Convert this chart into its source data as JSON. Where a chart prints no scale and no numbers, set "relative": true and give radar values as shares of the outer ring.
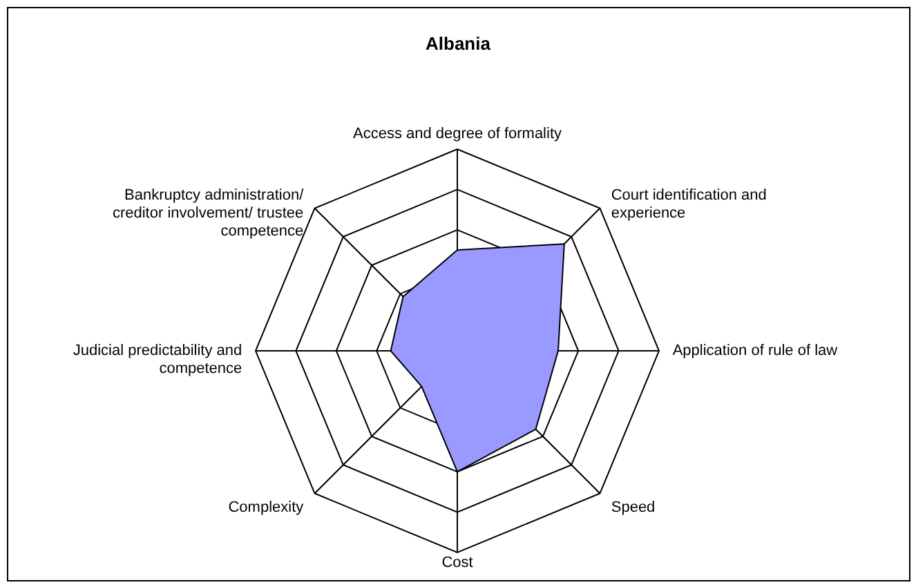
{
  "chart_data": {
    "type": "radar",
    "title": "Albania",
    "relative": true,
    "grid": true,
    "categories": [
      "Access and degree of formality",
      "Court identification and experience",
      "Application of rule of law",
      "Speed",
      "Cost",
      "Complexity",
      "Judicial predictability and competence",
      "Bankruptcy administration/ creditor involvement/ trustee competence"
    ],
    "series": [
      {
        "color": "#9999ff",
        "values": [
          0.5,
          0.75,
          0.5,
          0.55,
          0.6,
          0.25,
          0.33,
          0.38
        ]
      }
    ]
  }
}
